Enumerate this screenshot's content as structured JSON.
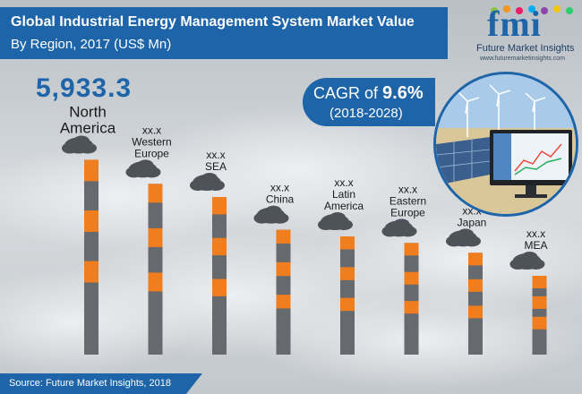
{
  "header": {
    "title": "Global Industrial Energy Management System Market Value",
    "subtitle": "By Region, 2017 (US$ Mn)"
  },
  "logo": {
    "letters": "fmi",
    "name": "Future Market Insights",
    "url": "www.futuremarketinsights.com"
  },
  "highlight_value": "5,933.3",
  "cagr": {
    "prefix": "CAGR of ",
    "value": "9.6%",
    "period": "(2018-2028)"
  },
  "source": "Source: Future Market Insights, 2018",
  "colors": {
    "brand_blue": "#1d64a8",
    "chimney_grey": "#666a6e",
    "chimney_orange": "#f07d1e",
    "smoke": "#4d5358"
  },
  "chart_data": {
    "type": "bar",
    "categories": [
      [
        "North",
        "America"
      ],
      [
        "Western",
        "Europe"
      ],
      [
        "SEA"
      ],
      [
        "China"
      ],
      [
        "Latin",
        "America"
      ],
      [
        "Eastern",
        "Europe"
      ],
      [
        "Japan"
      ],
      [
        "MEA"
      ]
    ],
    "value_labels": [
      "",
      "xx.x",
      "xx.x",
      "xx.x",
      "xx.x",
      "xx.x",
      "xx.x",
      "xx.x"
    ],
    "values": [
      5933.3,
      5200,
      4800,
      3800,
      3600,
      3400,
      3100,
      2400
    ],
    "ylim": [
      0,
      6000
    ]
  }
}
